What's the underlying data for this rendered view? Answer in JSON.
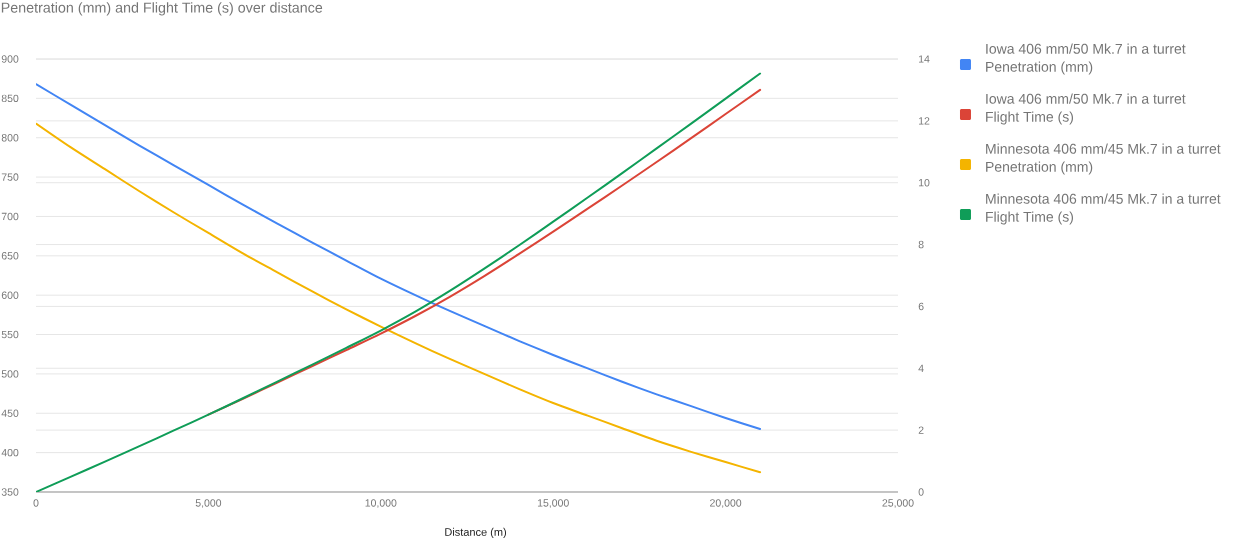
{
  "chart_data": {
    "type": "line",
    "title": "Penetration (mm) and Flight Time (s) over distance",
    "xlabel": "Distance (m)",
    "x": [
      0,
      1000,
      2000,
      3000,
      4000,
      5000,
      6000,
      7000,
      8000,
      9000,
      10000,
      11000,
      12000,
      13000,
      14000,
      15000,
      16000,
      17000,
      18000,
      19000,
      20000,
      21000
    ],
    "series": [
      {
        "name": "Iowa 406 mm/50 Mk.7 in a turret Penetration (mm)",
        "color": "#4285f4",
        "values": [
          868,
          842,
          816,
          790,
          765,
          740,
          715,
          691,
          667,
          644,
          621,
          600,
          580,
          561,
          542,
          524,
          507,
          490,
          474,
          459,
          444,
          430
        ]
      },
      {
        "name": "Iowa 406 mm/50 Mk.7 in a turret Flight Time (s)",
        "color": "#db4437",
        "axis": "y2",
        "values": [
          null,
          null,
          null,
          null,
          null,
          2.5,
          3.01,
          3.54,
          4.06,
          4.59,
          5.12,
          5.69,
          6.31,
          6.98,
          7.69,
          8.42,
          9.16,
          9.91,
          10.67,
          11.44,
          12.22,
          13.0
        ]
      },
      {
        "name": "Minnesota 406 mm/45 Mk.7 in a turret Penetration (mm)",
        "color": "#f4b400",
        "values": [
          818,
          788,
          760,
          732,
          705,
          679,
          653,
          629,
          605,
          582,
          560,
          539,
          519,
          500,
          481,
          463,
          447,
          431,
          415,
          401,
          388,
          375
        ]
      },
      {
        "name": "Minnesota 406 mm/45 Mk.7 in a turret Flight Time (s)",
        "color": "#0f9d58",
        "axis": "y2",
        "values": [
          0,
          0.49,
          0.98,
          1.48,
          1.99,
          2.5,
          3.03,
          3.57,
          4.11,
          4.66,
          5.22,
          5.83,
          6.5,
          7.22,
          7.97,
          8.74,
          9.52,
          10.31,
          11.11,
          11.91,
          12.72,
          13.53
        ]
      }
    ],
    "xlim": [
      0,
      25000
    ],
    "xticks": [
      0,
      {
        "value": 5000,
        "label": "5,000"
      },
      {
        "value": 10000,
        "label": "10,000"
      },
      {
        "value": 15000,
        "label": "15,000"
      },
      {
        "value": 20000,
        "label": "20,000"
      },
      {
        "value": 25000,
        "label": "25,000"
      }
    ],
    "ylim": [
      350,
      900
    ],
    "yticks": [
      350,
      400,
      450,
      500,
      550,
      600,
      650,
      700,
      750,
      800,
      850,
      900
    ],
    "y2lim": [
      0,
      14
    ],
    "y2ticks": [
      0,
      2,
      4,
      6,
      8,
      10,
      12,
      14
    ],
    "grid": "y",
    "legend": "right"
  }
}
